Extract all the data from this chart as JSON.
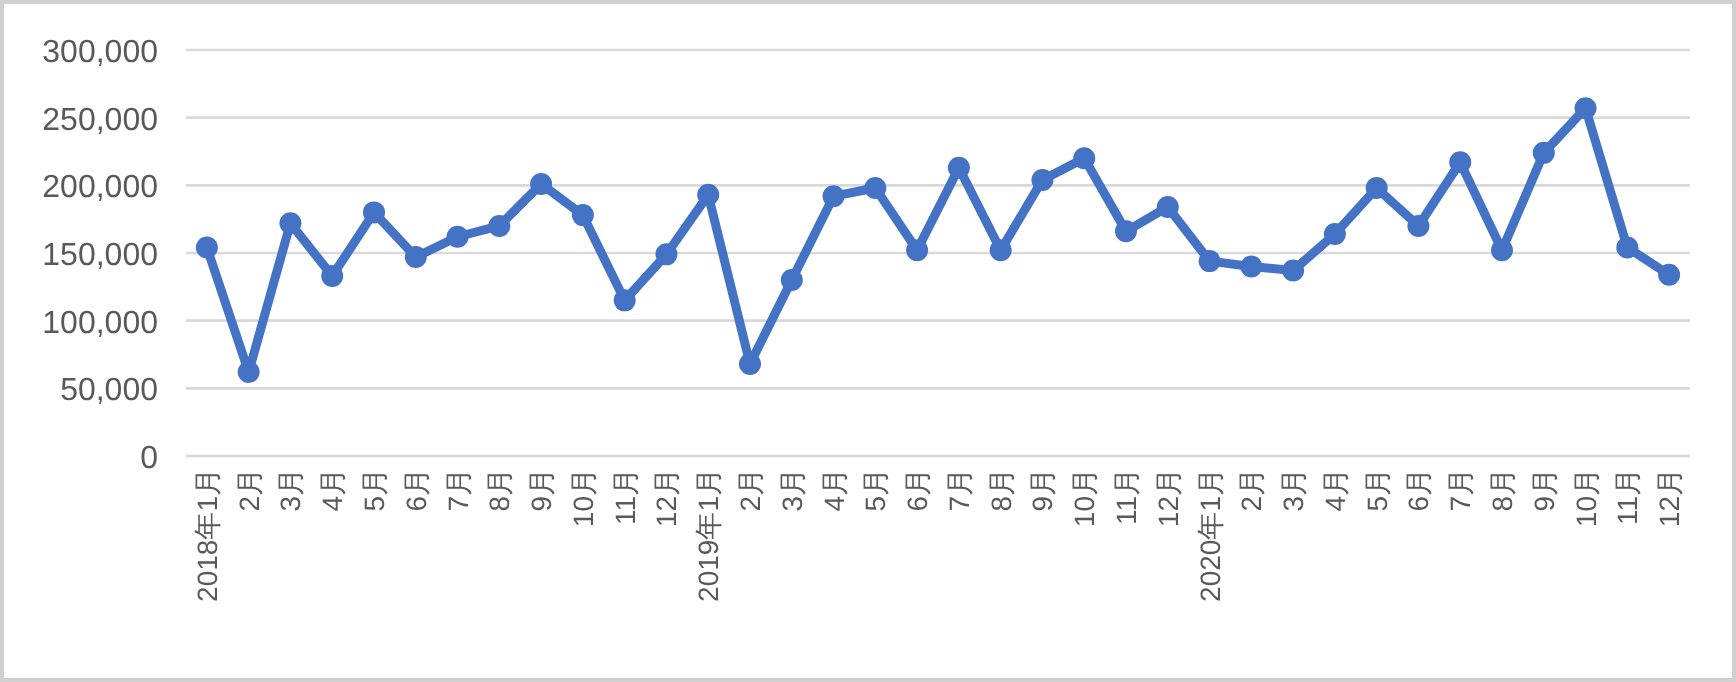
{
  "chart_data": {
    "type": "line",
    "categories": [
      "2018年1月",
      "2月",
      "3月",
      "4月",
      "5月",
      "6月",
      "7月",
      "8月",
      "9月",
      "10月",
      "11月",
      "12月",
      "2019年1月",
      "2月",
      "3月",
      "4月",
      "5月",
      "6月",
      "7月",
      "8月",
      "9月",
      "10月",
      "11月",
      "12月",
      "2020年1月",
      "2月",
      "3月",
      "4月",
      "5月",
      "6月",
      "7月",
      "8月",
      "9月",
      "10月",
      "11月",
      "12月"
    ],
    "series": [
      {
        "color": "#4472c4",
        "values": [
          154000,
          62000,
          172000,
          133000,
          180000,
          147000,
          162000,
          170000,
          201000,
          178000,
          115000,
          149000,
          193000,
          68000,
          130000,
          192000,
          198000,
          152000,
          213000,
          152000,
          204000,
          220000,
          166000,
          184000,
          144000,
          140000,
          137000,
          164000,
          198000,
          170000,
          217000,
          152000,
          224000,
          257000,
          154000,
          134000
        ]
      }
    ],
    "ylim": [
      0,
      300000
    ],
    "yticks": [
      {
        "value": 0,
        "label": "0"
      },
      {
        "value": 50000,
        "label": "50,000"
      },
      {
        "value": 100000,
        "label": "100,000"
      },
      {
        "value": 150000,
        "label": "150,000"
      },
      {
        "value": 200000,
        "label": "200,000"
      },
      {
        "value": 250000,
        "label": "250,000"
      },
      {
        "value": 300000,
        "label": "300,000"
      }
    ],
    "grid": "y",
    "marker": "circle",
    "line_style": "solid"
  }
}
